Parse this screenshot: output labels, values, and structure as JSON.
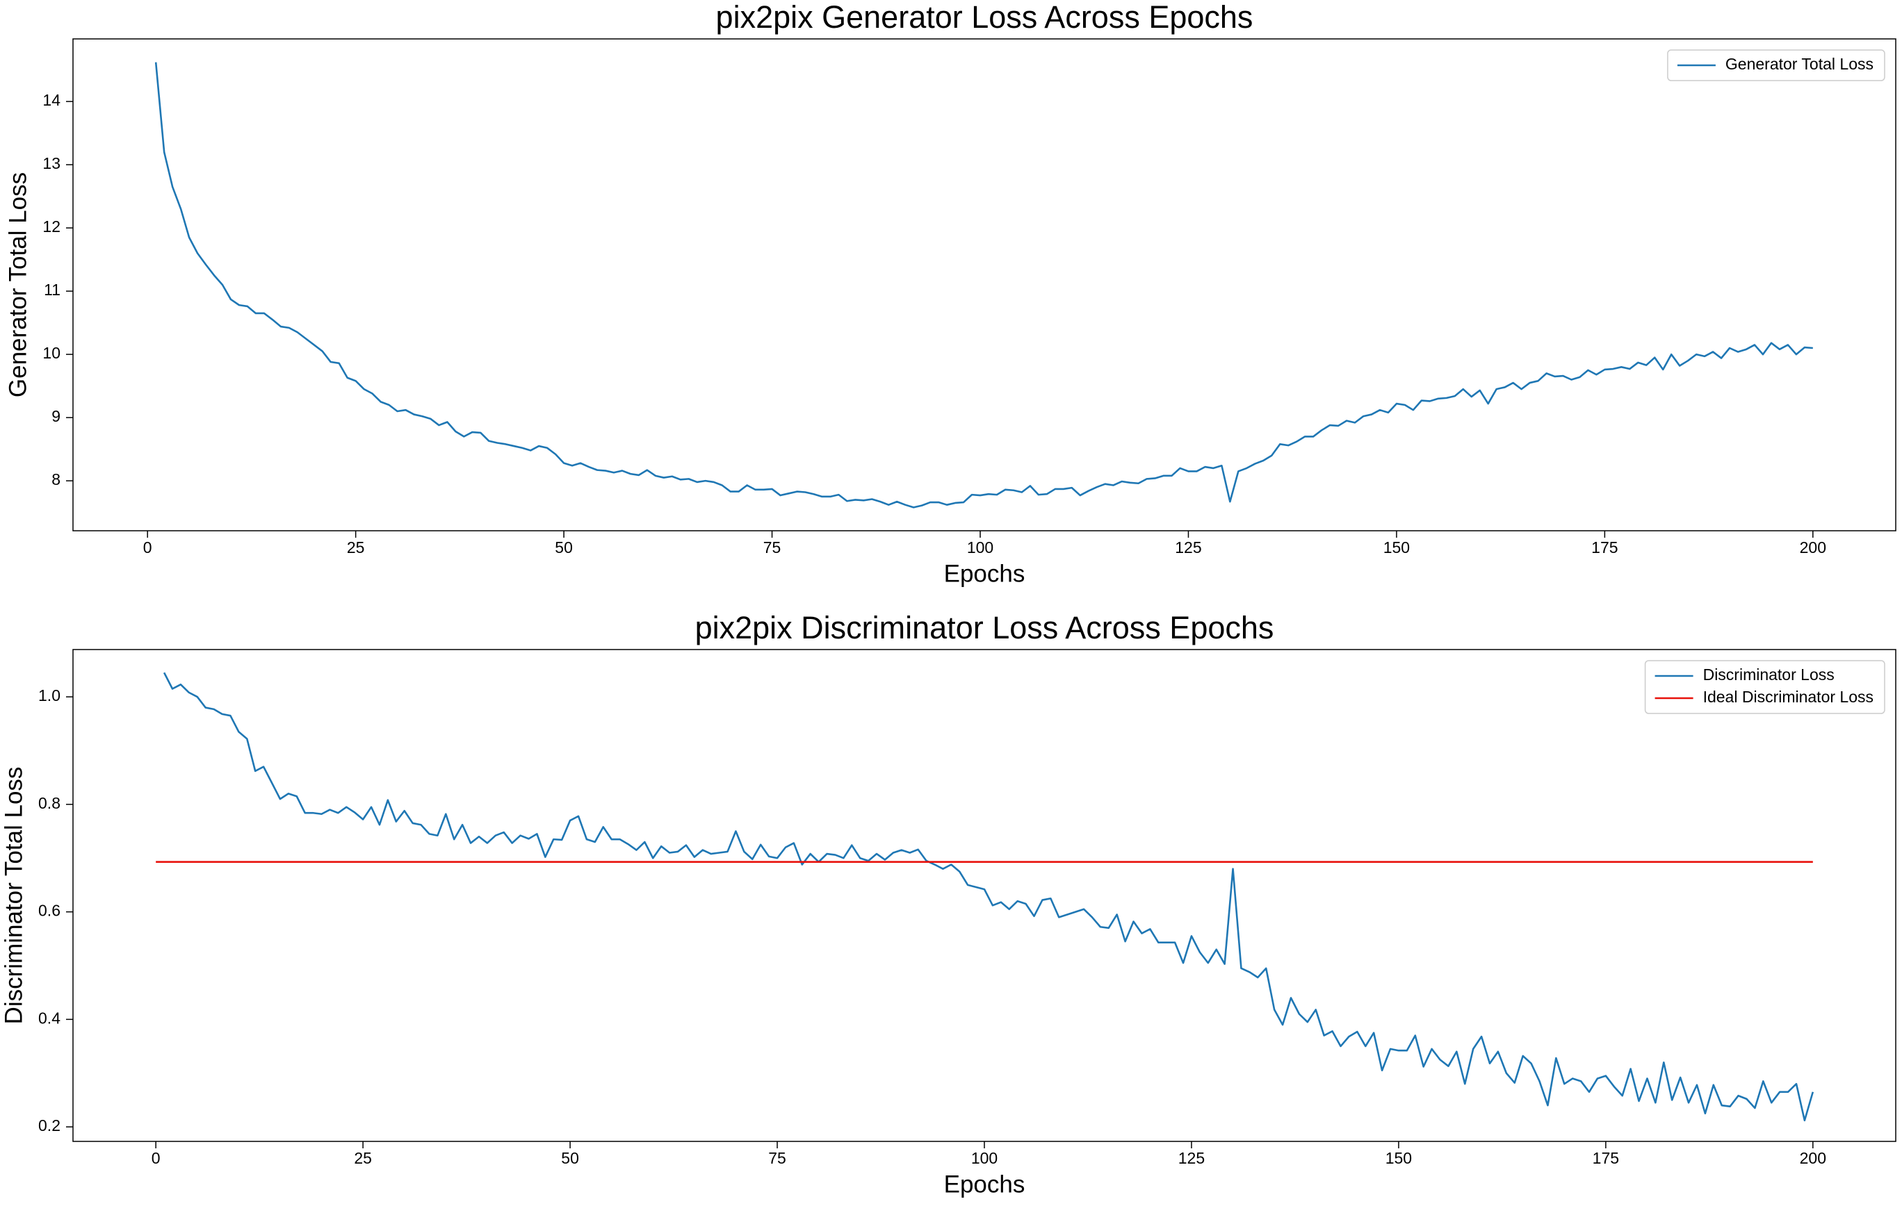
{
  "chart_data": [
    {
      "type": "line",
      "title": "pix2pix Generator Loss Across Epochs",
      "x_label": "Epochs",
      "y_label": "Generator Total Loss",
      "xlim": [
        -8.95,
        209.95
      ],
      "xticks": [
        0,
        25,
        50,
        75,
        100,
        125,
        150,
        175,
        200
      ],
      "ylim": [
        7.21,
        14.99
      ],
      "yticks": [
        8,
        9,
        10,
        11,
        12,
        13,
        14
      ],
      "grid": false,
      "legend": "upper right",
      "series": [
        {
          "name": "Generator Total Loss",
          "color": "#1f77b4",
          "x": [
            1,
            2,
            3,
            4,
            5,
            6,
            7,
            8,
            9,
            10,
            11,
            12,
            13,
            14,
            15,
            16,
            17,
            18,
            19,
            20,
            21,
            22,
            23,
            24,
            25,
            26,
            27,
            28,
            29,
            30,
            31,
            32,
            33,
            34,
            35,
            36,
            37,
            38,
            39,
            40,
            41,
            42,
            43,
            44,
            45,
            46,
            47,
            48,
            49,
            50,
            51,
            52,
            53,
            54,
            55,
            56,
            57,
            58,
            59,
            60,
            61,
            62,
            63,
            64,
            65,
            66,
            67,
            68,
            69,
            70,
            71,
            72,
            73,
            74,
            75,
            76,
            77,
            78,
            79,
            80,
            81,
            82,
            83,
            84,
            85,
            86,
            87,
            88,
            89,
            90,
            91,
            92,
            93,
            94,
            95,
            96,
            97,
            98,
            99,
            100,
            101,
            102,
            103,
            104,
            105,
            106,
            107,
            108,
            109,
            110,
            111,
            112,
            113,
            114,
            115,
            116,
            117,
            118,
            119,
            120,
            121,
            122,
            123,
            124,
            125,
            126,
            127,
            128,
            129,
            130,
            131,
            132,
            133,
            134,
            135,
            136,
            137,
            138,
            139,
            140,
            141,
            142,
            143,
            144,
            145,
            146,
            147,
            148,
            149,
            150,
            151,
            152,
            153,
            154,
            155,
            156,
            157,
            158,
            159,
            160,
            161,
            162,
            163,
            164,
            165,
            166,
            167,
            168,
            169,
            170,
            171,
            172,
            173,
            174,
            175,
            176,
            177,
            178,
            179,
            180,
            181,
            182,
            183,
            184,
            185,
            186,
            187,
            188,
            189,
            190,
            191,
            192,
            193,
            194,
            195,
            196,
            197,
            198,
            199,
            200
          ],
          "values": [
            14.62,
            13.2,
            12.65,
            12.3,
            11.85,
            11.6,
            11.42,
            11.25,
            11.1,
            10.87,
            10.78,
            10.76,
            10.65,
            10.65,
            10.55,
            10.44,
            10.42,
            10.35,
            10.25,
            10.15,
            10.05,
            9.88,
            9.86,
            9.63,
            9.58,
            9.45,
            9.38,
            9.25,
            9.2,
            9.1,
            9.12,
            9.05,
            9.02,
            8.98,
            8.88,
            8.93,
            8.78,
            8.7,
            8.77,
            8.76,
            8.63,
            8.6,
            8.58,
            8.55,
            8.52,
            8.48,
            8.55,
            8.52,
            8.42,
            8.28,
            8.24,
            8.28,
            8.22,
            8.17,
            8.16,
            8.13,
            8.16,
            8.11,
            8.09,
            8.17,
            8.08,
            8.05,
            8.07,
            8.02,
            8.03,
            7.98,
            8.0,
            7.98,
            7.93,
            7.83,
            7.83,
            7.93,
            7.86,
            7.86,
            7.87,
            7.77,
            7.8,
            7.83,
            7.82,
            7.79,
            7.75,
            7.75,
            7.78,
            7.68,
            7.7,
            7.69,
            7.71,
            7.67,
            7.62,
            7.67,
            7.62,
            7.58,
            7.61,
            7.66,
            7.66,
            7.62,
            7.65,
            7.66,
            7.78,
            7.77,
            7.79,
            7.78,
            7.86,
            7.85,
            7.82,
            7.92,
            7.78,
            7.79,
            7.87,
            7.87,
            7.89,
            7.77,
            7.84,
            7.9,
            7.95,
            7.93,
            7.99,
            7.97,
            7.96,
            8.03,
            8.04,
            8.08,
            8.08,
            8.2,
            8.15,
            8.15,
            8.22,
            8.2,
            8.24,
            7.67,
            8.15,
            8.2,
            8.27,
            8.32,
            8.4,
            8.58,
            8.56,
            8.62,
            8.7,
            8.7,
            8.8,
            8.88,
            8.87,
            8.95,
            8.92,
            9.02,
            9.05,
            9.12,
            9.08,
            9.22,
            9.2,
            9.12,
            9.27,
            9.26,
            9.3,
            9.31,
            9.34,
            9.45,
            9.33,
            9.43,
            9.22,
            9.45,
            9.48,
            9.55,
            9.45,
            9.55,
            9.58,
            9.7,
            9.65,
            9.66,
            9.6,
            9.64,
            9.75,
            9.68,
            9.76,
            9.77,
            9.8,
            9.77,
            9.87,
            9.83,
            9.95,
            9.76,
            10.0,
            9.82,
            9.9,
            10.0,
            9.97,
            10.04,
            9.94,
            10.1,
            10.04,
            10.08,
            10.15,
            10.0,
            10.18,
            10.08,
            10.15,
            10.0,
            10.11,
            10.1
          ]
        }
      ]
    },
    {
      "type": "line",
      "title": "pix2pix Discriminator Loss Across Epochs",
      "x_label": "Epochs",
      "y_label": "Discriminator Total Loss",
      "xlim": [
        -10,
        210
      ],
      "xticks": [
        0,
        25,
        50,
        75,
        100,
        125,
        150,
        175,
        200
      ],
      "ylim": [
        0.173,
        1.088
      ],
      "yticks": [
        0.2,
        0.4,
        0.6,
        0.8,
        {
          "value": 1,
          "label": "1.0"
        }
      ],
      "grid": false,
      "legend": "upper right",
      "series": [
        {
          "name": "Discriminator Loss",
          "color": "#1f77b4",
          "x": [
            1,
            2,
            3,
            4,
            5,
            6,
            7,
            8,
            9,
            10,
            11,
            12,
            13,
            14,
            15,
            16,
            17,
            18,
            19,
            20,
            21,
            22,
            23,
            24,
            25,
            26,
            27,
            28,
            29,
            30,
            31,
            32,
            33,
            34,
            35,
            36,
            37,
            38,
            39,
            40,
            41,
            42,
            43,
            44,
            45,
            46,
            47,
            48,
            49,
            50,
            51,
            52,
            53,
            54,
            55,
            56,
            57,
            58,
            59,
            60,
            61,
            62,
            63,
            64,
            65,
            66,
            67,
            68,
            69,
            70,
            71,
            72,
            73,
            74,
            75,
            76,
            77,
            78,
            79,
            80,
            81,
            82,
            83,
            84,
            85,
            86,
            87,
            88,
            89,
            90,
            91,
            92,
            93,
            94,
            95,
            96,
            97,
            98,
            99,
            100,
            101,
            102,
            103,
            104,
            105,
            106,
            107,
            108,
            109,
            110,
            111,
            112,
            113,
            114,
            115,
            116,
            117,
            118,
            119,
            120,
            121,
            122,
            123,
            124,
            125,
            126,
            127,
            128,
            129,
            130,
            131,
            132,
            133,
            134,
            135,
            136,
            137,
            138,
            139,
            140,
            141,
            142,
            143,
            144,
            145,
            146,
            147,
            148,
            149,
            150,
            151,
            152,
            153,
            154,
            155,
            156,
            157,
            158,
            159,
            160,
            161,
            162,
            163,
            164,
            165,
            166,
            167,
            168,
            169,
            170,
            171,
            172,
            173,
            174,
            175,
            176,
            177,
            178,
            179,
            180,
            181,
            182,
            183,
            184,
            185,
            186,
            187,
            188,
            189,
            190,
            191,
            192,
            193,
            194,
            195,
            196,
            197,
            198,
            199,
            200
          ],
          "values": [
            1.045,
            1.015,
            1.023,
            1.008,
            1.0,
            0.98,
            0.977,
            0.968,
            0.965,
            0.935,
            0.922,
            0.862,
            0.87,
            0.84,
            0.81,
            0.82,
            0.815,
            0.784,
            0.784,
            0.782,
            0.79,
            0.784,
            0.795,
            0.785,
            0.772,
            0.795,
            0.762,
            0.808,
            0.768,
            0.788,
            0.765,
            0.762,
            0.745,
            0.742,
            0.782,
            0.735,
            0.762,
            0.728,
            0.74,
            0.728,
            0.742,
            0.748,
            0.728,
            0.742,
            0.736,
            0.745,
            0.702,
            0.735,
            0.734,
            0.77,
            0.778,
            0.735,
            0.73,
            0.758,
            0.735,
            0.735,
            0.726,
            0.715,
            0.73,
            0.7,
            0.722,
            0.71,
            0.712,
            0.724,
            0.702,
            0.715,
            0.708,
            0.71,
            0.712,
            0.75,
            0.712,
            0.698,
            0.725,
            0.703,
            0.7,
            0.72,
            0.728,
            0.688,
            0.708,
            0.693,
            0.708,
            0.706,
            0.7,
            0.724,
            0.7,
            0.695,
            0.708,
            0.697,
            0.71,
            0.715,
            0.71,
            0.716,
            0.695,
            0.688,
            0.68,
            0.688,
            0.675,
            0.65,
            0.646,
            0.642,
            0.612,
            0.618,
            0.605,
            0.62,
            0.615,
            0.592,
            0.622,
            0.625,
            0.59,
            0.595,
            0.6,
            0.605,
            0.59,
            0.572,
            0.57,
            0.595,
            0.545,
            0.582,
            0.56,
            0.568,
            0.543,
            0.543,
            0.543,
            0.505,
            0.555,
            0.525,
            0.505,
            0.53,
            0.503,
            0.68,
            0.495,
            0.488,
            0.478,
            0.495,
            0.418,
            0.39,
            0.44,
            0.41,
            0.395,
            0.418,
            0.37,
            0.378,
            0.35,
            0.368,
            0.377,
            0.35,
            0.375,
            0.305,
            0.345,
            0.342,
            0.342,
            0.37,
            0.312,
            0.345,
            0.325,
            0.313,
            0.34,
            0.28,
            0.345,
            0.368,
            0.318,
            0.34,
            0.3,
            0.282,
            0.332,
            0.318,
            0.285,
            0.24,
            0.328,
            0.28,
            0.29,
            0.285,
            0.265,
            0.29,
            0.295,
            0.275,
            0.258,
            0.308,
            0.248,
            0.29,
            0.245,
            0.32,
            0.25,
            0.292,
            0.245,
            0.278,
            0.225,
            0.278,
            0.24,
            0.238,
            0.258,
            0.252,
            0.235,
            0.285,
            0.245,
            0.265,
            0.265,
            0.28,
            0.212,
            0.265
          ]
        },
        {
          "name": "Ideal Discriminator Loss",
          "color": "#e8120c",
          "x": [
            0,
            200
          ],
          "values": [
            0.693,
            0.693
          ]
        }
      ]
    }
  ]
}
